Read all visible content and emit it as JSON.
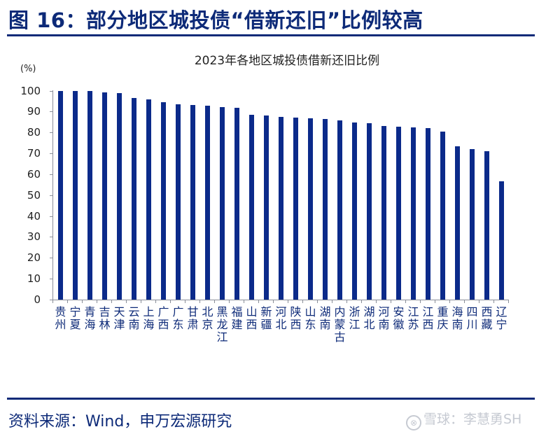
{
  "header": {
    "figure_title": "图 16：部分地区城投债“借新还旧”比例较高"
  },
  "footer": {
    "source": "资料来源：Wind，申万宏源研究",
    "watermark": "雪球：李慧勇SH",
    "watermark_icon": "snowball-logo-icon"
  },
  "colors": {
    "bar": "#0b2a8a",
    "title": "#0d2a78",
    "axis": "#8a8f99"
  },
  "chart_data": {
    "type": "bar",
    "title": "2023年各地区城投债借新还旧比例",
    "xlabel": "",
    "ylabel": "(%)",
    "ylim": [
      0,
      100
    ],
    "yticks": [
      0,
      10,
      20,
      30,
      40,
      50,
      60,
      70,
      80,
      90,
      100
    ],
    "grid": false,
    "legend": null,
    "categories": [
      "贵州",
      "宁夏",
      "青海",
      "吉林",
      "天津",
      "云南",
      "上海",
      "广西",
      "广东",
      "甘肃",
      "北京",
      "黑龙江",
      "福建",
      "山西",
      "新疆",
      "河北",
      "陕西",
      "山东",
      "湖南",
      "内蒙古",
      "浙江",
      "湖北",
      "河南",
      "安徽",
      "江苏",
      "江西",
      "重庆",
      "海南",
      "四川",
      "西藏",
      "辽宁"
    ],
    "values": [
      100,
      100,
      100,
      99.3,
      98.8,
      96.5,
      95.7,
      94.5,
      93.5,
      93.0,
      92.8,
      92.2,
      91.7,
      88.5,
      88.0,
      87.6,
      87.0,
      86.7,
      86.3,
      85.8,
      84.8,
      84.5,
      83.2,
      82.7,
      82.5,
      82.0,
      80.3,
      73.5,
      72.0,
      71.0,
      56.5
    ]
  }
}
